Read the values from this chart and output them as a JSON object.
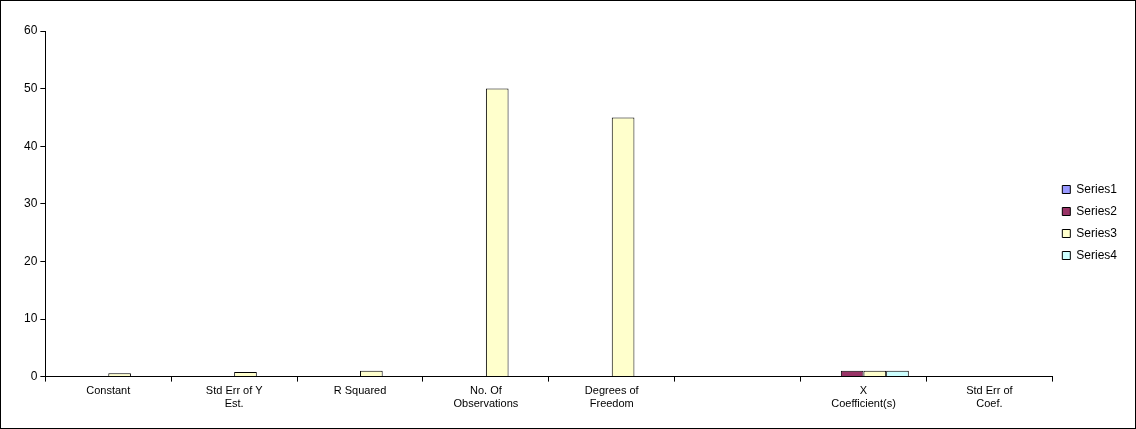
{
  "chart_data": {
    "type": "bar",
    "categories": [
      "Constant",
      "Std Err of Y Est.",
      "R Squared",
      "No. Of Observations",
      "Degrees of Freedom",
      null,
      "X Coefficient(s)",
      "Std Err of Coef."
    ],
    "series": [
      {
        "name": "Series1",
        "color": "#9999ff",
        "values": [
          null,
          null,
          null,
          null,
          null,
          null,
          null,
          null
        ]
      },
      {
        "name": "Series2",
        "color": "#993366",
        "values": [
          null,
          null,
          null,
          null,
          null,
          null,
          1,
          null
        ]
      },
      {
        "name": "Series3",
        "color": "#ffffcc",
        "values": [
          0.6,
          0.8,
          1,
          50,
          45,
          null,
          1,
          null
        ]
      },
      {
        "name": "Series4",
        "color": "#ccffff",
        "values": [
          null,
          null,
          null,
          null,
          null,
          null,
          1,
          null
        ]
      }
    ],
    "ylim": [
      0,
      60
    ],
    "yticks": [
      0,
      10,
      20,
      30,
      40,
      50,
      60
    ],
    "grid": false,
    "legend": "right"
  }
}
